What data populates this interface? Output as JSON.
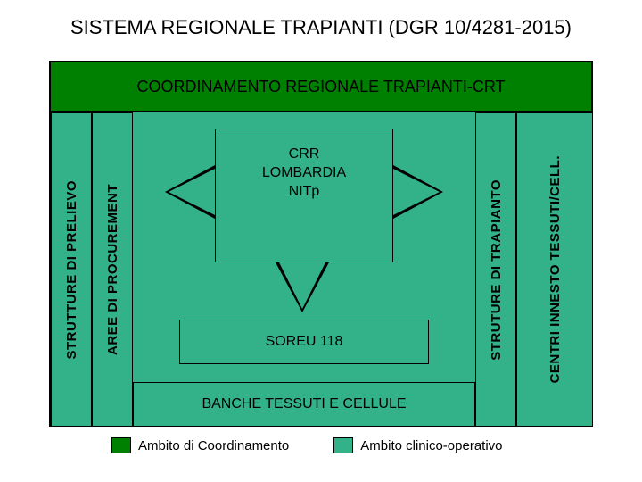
{
  "colors": {
    "green_dark": "#008000",
    "green_mid": "#33b28a",
    "black": "#000000",
    "white": "#ffffff"
  },
  "title": "SISTEMA REGIONALE TRAPIANTI (DGR 10/4281-2015)",
  "crt_banner": "COORDINAMENTO REGIONALE TRAPIANTI-CRT",
  "columns": {
    "prelievo": "STRUTTURE DI PRELIEVO",
    "procurement": "AREE DI PROCUREMENT",
    "trapianto": "STRUTURE DI TRAPIANTO",
    "centri": "CENTRI INNESTO TESSUTI/CELL."
  },
  "crr_lines": [
    "CRR",
    "LOMBARDIA",
    "NITp"
  ],
  "soreu": "SOREU 118",
  "banche": "BANCHE TESSUTI E CELLULE",
  "legend": {
    "coord": "Ambito di Coordinamento",
    "clinic": "Ambito clinico-operativo"
  }
}
